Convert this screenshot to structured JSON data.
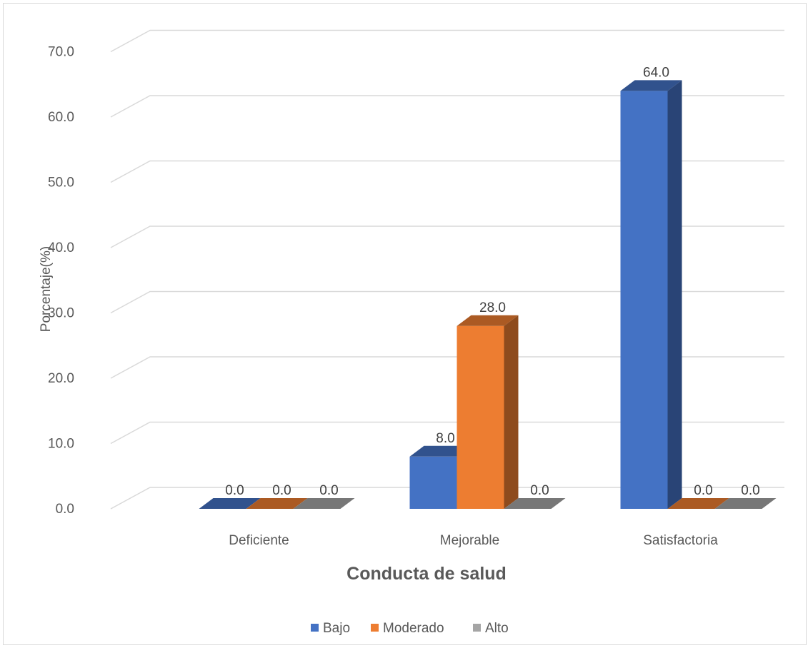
{
  "chart_data": {
    "type": "bar",
    "categories": [
      "Deficiente",
      "Mejorable",
      "Satisfactoria"
    ],
    "series": [
      {
        "name": "Bajo",
        "values": [
          0.0,
          8.0,
          64.0
        ],
        "color": "#4472C4"
      },
      {
        "name": "Moderado",
        "values": [
          0.0,
          28.0,
          0.0
        ],
        "color": "#ED7D31"
      },
      {
        "name": "Alto",
        "values": [
          0.0,
          0.0,
          0.0
        ],
        "color": "#A5A5A5"
      }
    ],
    "ylabel": "Porcentaje(%)",
    "xlabel": "Conducta de salud",
    "ylim": [
      0,
      70
    ],
    "yticks": [
      "0.0",
      "10.0",
      "20.0",
      "30.0",
      "40.0",
      "50.0",
      "60.0",
      "70.0"
    ],
    "grid": true,
    "legend": "bottom",
    "style": "3d-clustered-column"
  }
}
